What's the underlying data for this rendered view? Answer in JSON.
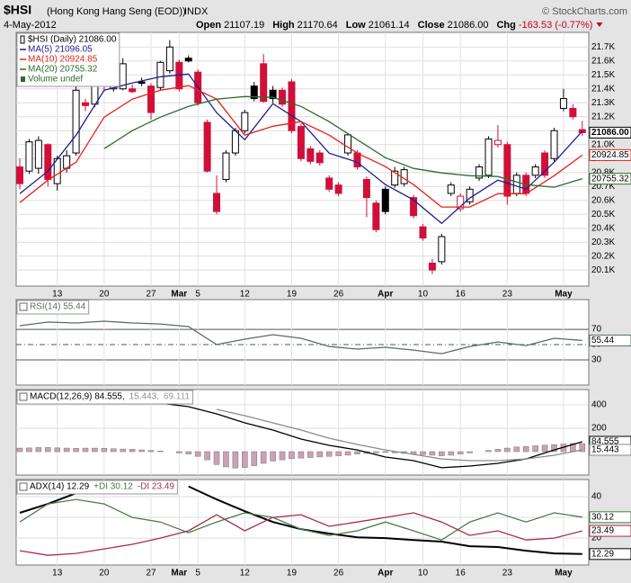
{
  "header": {
    "symbol": "$HSI",
    "name": "(Hong Kong Hang Seng (EOD))",
    "exchange": "INDX",
    "source": "© StockCharts.com",
    "date": "4-May-2012",
    "fields": [
      {
        "label": "Open",
        "value": "21107.19"
      },
      {
        "label": "High",
        "value": "21170.64"
      },
      {
        "label": "Low",
        "value": "21061.14"
      },
      {
        "label": "Close",
        "value": "21086.00"
      },
      {
        "label": "Chg",
        "value": "-163.53 (-0.77%)"
      }
    ]
  },
  "chart_data": [
    {
      "type": "candlestick",
      "name": "$HSI (Daily) 21086.00",
      "end_label": "21086.00",
      "up_color": "#000000",
      "down_color": "#d0103a",
      "extra_legend": "Volume undef",
      "open": [
        20840,
        20810,
        20830,
        21000,
        20720,
        20830,
        20940,
        21300,
        21290,
        21720,
        21400,
        21400,
        21400,
        21450,
        21420,
        21410,
        21530,
        21590,
        21620,
        21520,
        21160,
        20650,
        20750,
        20940,
        21100,
        21420,
        21580,
        21390,
        21390,
        21450,
        21130,
        20970,
        20940,
        20760,
        20710,
        20940,
        20940,
        20750,
        20580,
        20680,
        20710,
        20720,
        20620,
        20410,
        20150,
        20160,
        20650,
        20540,
        20590,
        20760,
        20780,
        21000,
        21000,
        20650,
        20780,
        20780,
        20940,
        20900,
        21260,
        21260,
        21107.19
      ],
      "high": [
        20900,
        21040,
        21060,
        21010,
        20920,
        20960,
        21420,
        21330,
        21540,
        21730,
        21510,
        21620,
        21430,
        21480,
        21440,
        21600,
        21750,
        21610,
        21640,
        21540,
        21180,
        20780,
        20960,
        21120,
        21250,
        21450,
        21650,
        21420,
        21410,
        21470,
        21150,
        20990,
        20960,
        20780,
        20730,
        21080,
        20960,
        20770,
        20600,
        20700,
        20840,
        20840,
        20640,
        20430,
        20180,
        20360,
        20730,
        20650,
        20700,
        20860,
        21060,
        21140,
        21020,
        20800,
        20800,
        20860,
        20960,
        21120,
        21400,
        21290,
        21170.64
      ],
      "low": [
        20680,
        20790,
        20790,
        20700,
        20670,
        20800,
        20920,
        21240,
        21270,
        21380,
        21380,
        21390,
        21370,
        21420,
        21180,
        21390,
        21510,
        21380,
        21590,
        21280,
        20800,
        20500,
        20730,
        20920,
        21080,
        21310,
        21300,
        21300,
        21270,
        21080,
        20880,
        20860,
        20850,
        20660,
        20630,
        20920,
        20820,
        20480,
        20370,
        20500,
        20690,
        20700,
        20470,
        20310,
        20070,
        20140,
        20630,
        20520,
        20570,
        20740,
        20760,
        20980,
        20570,
        20630,
        20630,
        20760,
        20760,
        20880,
        21240,
        21180,
        21061.14
      ],
      "close": [
        20720,
        21020,
        21030,
        20750,
        20900,
        20920,
        21390,
        21280,
        21520,
        21420,
        21490,
        21580,
        21380,
        21440,
        21230,
        21590,
        21700,
        21400,
        21600,
        21300,
        20810,
        20520,
        20940,
        21100,
        21230,
        21330,
        21310,
        21330,
        21290,
        21100,
        20900,
        20880,
        20870,
        20680,
        20650,
        21070,
        20840,
        20620,
        20390,
        20520,
        20810,
        20820,
        20490,
        20330,
        20100,
        20340,
        20710,
        20630,
        20680,
        20840,
        21040,
        21030,
        20630,
        20780,
        20650,
        20840,
        20780,
        21100,
        21330,
        21200,
        21086
      ],
      "series": [
        {
          "name": "MA(5) 21096.05",
          "color": "#1c1c96",
          "end_label": "21096.05",
          "x": [
            0,
            3,
            6,
            9,
            12,
            15,
            18,
            21,
            24,
            27,
            30,
            33,
            36,
            39,
            42,
            45,
            48,
            51,
            54,
            57,
            60
          ],
          "values": [
            20648,
            20810,
            21068,
            21390,
            21442,
            21487,
            21506,
            21229,
            21035,
            21294,
            21165,
            20939,
            20874,
            20713,
            20603,
            20435,
            20616,
            20745,
            20681,
            20874,
            21096.05
          ]
        },
        {
          "name": "MA(10) 20924.85",
          "color": "#e8201c",
          "end_label": "20924.85",
          "x": [
            0,
            3,
            6,
            9,
            12,
            15,
            18,
            21,
            24,
            27,
            30,
            33,
            36,
            39,
            42,
            45,
            48,
            51,
            54,
            57,
            60
          ],
          "values": [
            20584,
            20745,
            20874,
            21197,
            21326,
            21390,
            21423,
            21326,
            21068,
            21132,
            21165,
            21068,
            20939,
            20842,
            20713,
            20552,
            20552,
            20648,
            20648,
            20777,
            20924.85
          ]
        },
        {
          "name": "MA(20) 20755.32",
          "color": "#2e6b2e",
          "end_label": "20755.32",
          "x": [
            0,
            3,
            6,
            9,
            12,
            15,
            18,
            21,
            24,
            27,
            30,
            33,
            36,
            39,
            42,
            45,
            48,
            51,
            54,
            57,
            60
          ],
          "values": [
            null,
            null,
            null,
            20971,
            21100,
            21197,
            21274,
            21326,
            21345,
            21339,
            21274,
            21165,
            21035,
            20906,
            20829,
            20797,
            20777,
            20771,
            20713,
            20694,
            20755.32
          ]
        }
      ],
      "ylim": [
        19985,
        21805
      ],
      "yticks": [
        {
          "value": 20100,
          "label": "20.1K"
        },
        {
          "value": 20200,
          "label": "20.2K"
        },
        {
          "value": 20300,
          "label": "20.3K"
        },
        {
          "value": 20400,
          "label": "20.4K"
        },
        {
          "value": 20500,
          "label": "20.5K"
        },
        {
          "value": 20600,
          "label": "20.6K"
        },
        {
          "value": 20700,
          "label": "20.7K"
        },
        {
          "value": 20800,
          "label": "20.8K"
        },
        {
          "value": 20900,
          "label": "20.9K"
        },
        {
          "value": 21000,
          "label": "21.0K"
        },
        {
          "value": 21100,
          "label": "21.1K"
        },
        {
          "value": 21200,
          "label": "21.2K"
        },
        {
          "value": 21300,
          "label": "21.3K"
        },
        {
          "value": 21400,
          "label": "21.4K"
        },
        {
          "value": 21500,
          "label": "21.5K"
        },
        {
          "value": 21600,
          "label": "21.6K"
        },
        {
          "value": 21700,
          "label": "21.7K"
        }
      ],
      "xticks": [
        {
          "value": 4,
          "label": "13"
        },
        {
          "value": 9,
          "label": "20"
        },
        {
          "value": 14,
          "label": "27"
        },
        {
          "value": 17,
          "label": "Mar"
        },
        {
          "value": 19,
          "label": "5"
        },
        {
          "value": 24,
          "label": "12"
        },
        {
          "value": 29,
          "label": "19"
        },
        {
          "value": 34,
          "label": "26"
        },
        {
          "value": 39,
          "label": "Apr"
        },
        {
          "value": 43,
          "label": "10"
        },
        {
          "value": 47,
          "label": "16"
        },
        {
          "value": 52,
          "label": "23"
        },
        {
          "value": 58,
          "label": "May"
        }
      ],
      "grid": true
    },
    {
      "type": "line",
      "ylim": [
        -3,
        109
      ],
      "yticks": [
        30,
        50,
        70
      ],
      "midline": 50,
      "grid": true,
      "series": [
        {
          "name": "RSI(14) 55.44",
          "color": "#5a6e5a",
          "end_label": "55.44",
          "x": [
            0,
            3,
            6,
            9,
            12,
            15,
            18,
            21,
            24,
            27,
            30,
            33,
            36,
            39,
            42,
            45,
            48,
            51,
            54,
            57,
            60
          ],
          "values": [
            74.8,
            79.5,
            78.3,
            80.7,
            78.3,
            77.1,
            73.6,
            50,
            57.1,
            63,
            58.3,
            47.6,
            44.1,
            46.5,
            42.9,
            38.2,
            47.6,
            53.5,
            48.8,
            58.3,
            55.44
          ]
        }
      ]
    },
    {
      "type": "macd",
      "ylim": [
        -200,
        531
      ],
      "yticks": [
        200,
        400
      ],
      "grid": true,
      "series": [
        {
          "name": "MACD(12,26,9) 84.555,",
          "color": "#000000",
          "end_label": "84.555",
          "x": [
            0,
            3,
            6,
            9,
            12,
            15,
            18,
            21,
            24,
            27,
            30,
            33,
            36,
            39,
            42,
            45,
            48,
            51,
            54,
            57,
            60
          ],
          "values": [
            null,
            null,
            null,
            null,
            null,
            415,
            385,
            323,
            246,
            185,
            108,
            54,
            15,
            -46,
            -77,
            -138,
            -123,
            -100,
            -62,
            15,
            84.555
          ]
        },
        {
          "name": "15.443,",
          "color": "#8a8a8a",
          "end_label": "15.443",
          "x": [
            0,
            3,
            6,
            9,
            12,
            15,
            18,
            21,
            24,
            27,
            30,
            33,
            36,
            39,
            42,
            45,
            48,
            51,
            54,
            57,
            60
          ],
          "values": [
            null,
            null,
            null,
            null,
            null,
            null,
            null,
            362,
            308,
            246,
            185,
            115,
            62,
            15,
            -23,
            -62,
            -77,
            -77,
            -62,
            -31,
            15.443
          ]
        }
      ],
      "histogram": {
        "name": "69.111",
        "color": "#c9a3b4",
        "values": [
          30,
          32,
          35,
          35,
          32,
          30,
          28,
          30,
          30,
          28,
          25,
          22,
          20,
          15,
          10,
          5,
          0,
          -10,
          -20,
          -40,
          -70,
          -110,
          -130,
          -140,
          -135,
          -120,
          -100,
          -80,
          -70,
          -60,
          -55,
          -50,
          -45,
          -40,
          -35,
          -30,
          -20,
          -15,
          -10,
          -5,
          -10,
          -15,
          -20,
          -25,
          -30,
          -35,
          -30,
          -20,
          -10,
          0,
          10,
          20,
          30,
          40,
          45,
          50,
          55,
          60,
          65,
          70,
          69.111
        ]
      }
    },
    {
      "type": "line",
      "ylim": [
        7,
        48.3
      ],
      "yticks": [
        20,
        30,
        40
      ],
      "grid": true,
      "series": [
        {
          "name": "ADX(14) 12.29",
          "color": "#000000",
          "width": 2,
          "end_label": "12.29",
          "x": [
            0,
            3,
            6,
            9,
            12,
            15,
            18,
            21,
            24,
            27,
            30,
            33,
            36,
            39,
            42,
            45,
            48,
            51,
            54,
            57,
            60
          ],
          "values": [
            32.2,
            36.5,
            41.7,
            46,
            null,
            null,
            45,
            38.7,
            33,
            27.8,
            24.3,
            22.2,
            20.4,
            20,
            19.1,
            18.3,
            16.1,
            15.7,
            13.9,
            12.6,
            12.29
          ]
        },
        {
          "name": "+DI 30.12",
          "color": "#4a7a4a",
          "end_label": "30.12",
          "x": [
            0,
            3,
            6,
            9,
            12,
            15,
            18,
            21,
            24,
            27,
            30,
            33,
            36,
            39,
            42,
            45,
            48,
            51,
            54,
            57,
            60
          ],
          "values": [
            27.8,
            36.5,
            38.7,
            36.5,
            30,
            27.8,
            22.6,
            27.8,
            32.2,
            30,
            24.3,
            21.3,
            23.5,
            27.8,
            23.5,
            19.1,
            27.8,
            32.2,
            27.8,
            32.2,
            30.12
          ]
        },
        {
          "name": "-DI 23.49",
          "color": "#a0304a",
          "end_label": "23.49",
          "x": [
            0,
            3,
            6,
            9,
            12,
            15,
            18,
            21,
            24,
            27,
            30,
            33,
            36,
            39,
            42,
            45,
            48,
            51,
            54,
            57,
            60
          ],
          "values": [
            13.9,
            11.7,
            12.6,
            14.8,
            17,
            20,
            23.5,
            31.3,
            23.5,
            30,
            31.3,
            25.7,
            27.8,
            30,
            32.2,
            27.8,
            21.3,
            23.5,
            19.1,
            20,
            23.49
          ]
        }
      ]
    }
  ]
}
